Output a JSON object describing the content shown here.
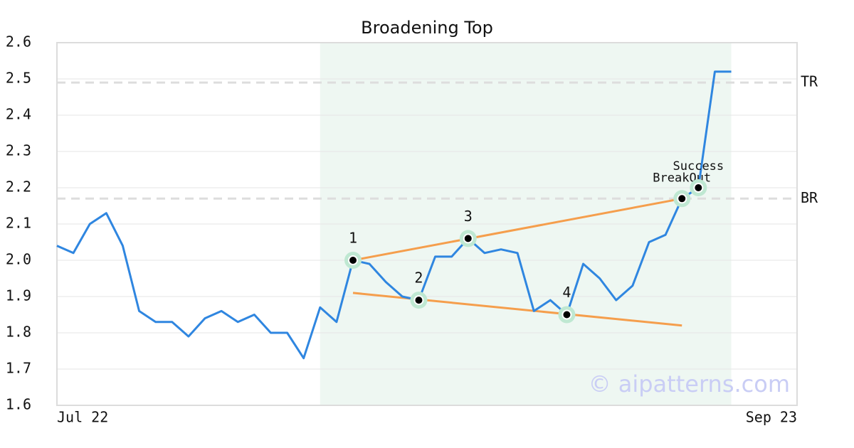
{
  "chart_data": {
    "type": "line",
    "title": "Broadening Top",
    "x": [
      0,
      1,
      2,
      3,
      4,
      5,
      6,
      7,
      8,
      9,
      10,
      11,
      12,
      13,
      14,
      15,
      16,
      17,
      18,
      19,
      20,
      21,
      22,
      23,
      24,
      25,
      26,
      27,
      28,
      29,
      30,
      31,
      32,
      33,
      34,
      35,
      36,
      37,
      38,
      39,
      40,
      41
    ],
    "values": [
      2.04,
      2.02,
      2.1,
      2.13,
      2.04,
      1.86,
      1.83,
      1.83,
      1.79,
      1.84,
      1.86,
      1.83,
      1.85,
      1.8,
      1.8,
      1.73,
      1.87,
      1.83,
      2.0,
      1.99,
      1.94,
      1.9,
      1.89,
      2.01,
      2.01,
      2.06,
      2.02,
      2.03,
      2.02,
      1.86,
      1.89,
      1.85,
      1.99,
      1.95,
      1.89,
      1.93,
      2.05,
      2.07,
      2.17,
      2.2,
      2.52,
      2.52
    ],
    "color": "#2f86e0",
    "xlim": [
      0,
      45
    ],
    "xticks": [
      {
        "value": 0,
        "label": "Jul 22"
      },
      {
        "value": 45,
        "label": "Sep 23"
      }
    ],
    "ylim": [
      1.6,
      2.6
    ],
    "yticks": [
      1.6,
      1.7,
      1.8,
      1.9,
      {
        "value": 2,
        "label": "2.0"
      },
      2.1,
      2.2,
      2.3,
      2.4,
      2.5,
      2.6
    ],
    "grid": true,
    "highlight": {
      "x": [
        16,
        41
      ],
      "color": "#eef7f2"
    },
    "levels": [
      {
        "label": "TR",
        "value": 2.49
      },
      {
        "label": "BR",
        "value": 2.17
      }
    ],
    "trend_lines": [
      {
        "x": [
          18,
          38
        ],
        "y": [
          2.0,
          2.17
        ],
        "color": "#f59e4c"
      },
      {
        "x": [
          18,
          38
        ],
        "y": [
          1.91,
          1.82
        ],
        "color": "#f59e4c"
      }
    ],
    "pattern_points": [
      {
        "label": "1",
        "x": 18,
        "y": 2.0
      },
      {
        "label": "2",
        "x": 22,
        "y": 1.89
      },
      {
        "label": "3",
        "x": 25,
        "y": 2.06
      },
      {
        "label": "4",
        "x": 31,
        "y": 1.85
      },
      {
        "label": "BreakOut",
        "x": 38,
        "y": 2.17
      },
      {
        "label": "Success",
        "x": 39,
        "y": 2.2
      }
    ],
    "watermark": "© aipatterns.com"
  }
}
